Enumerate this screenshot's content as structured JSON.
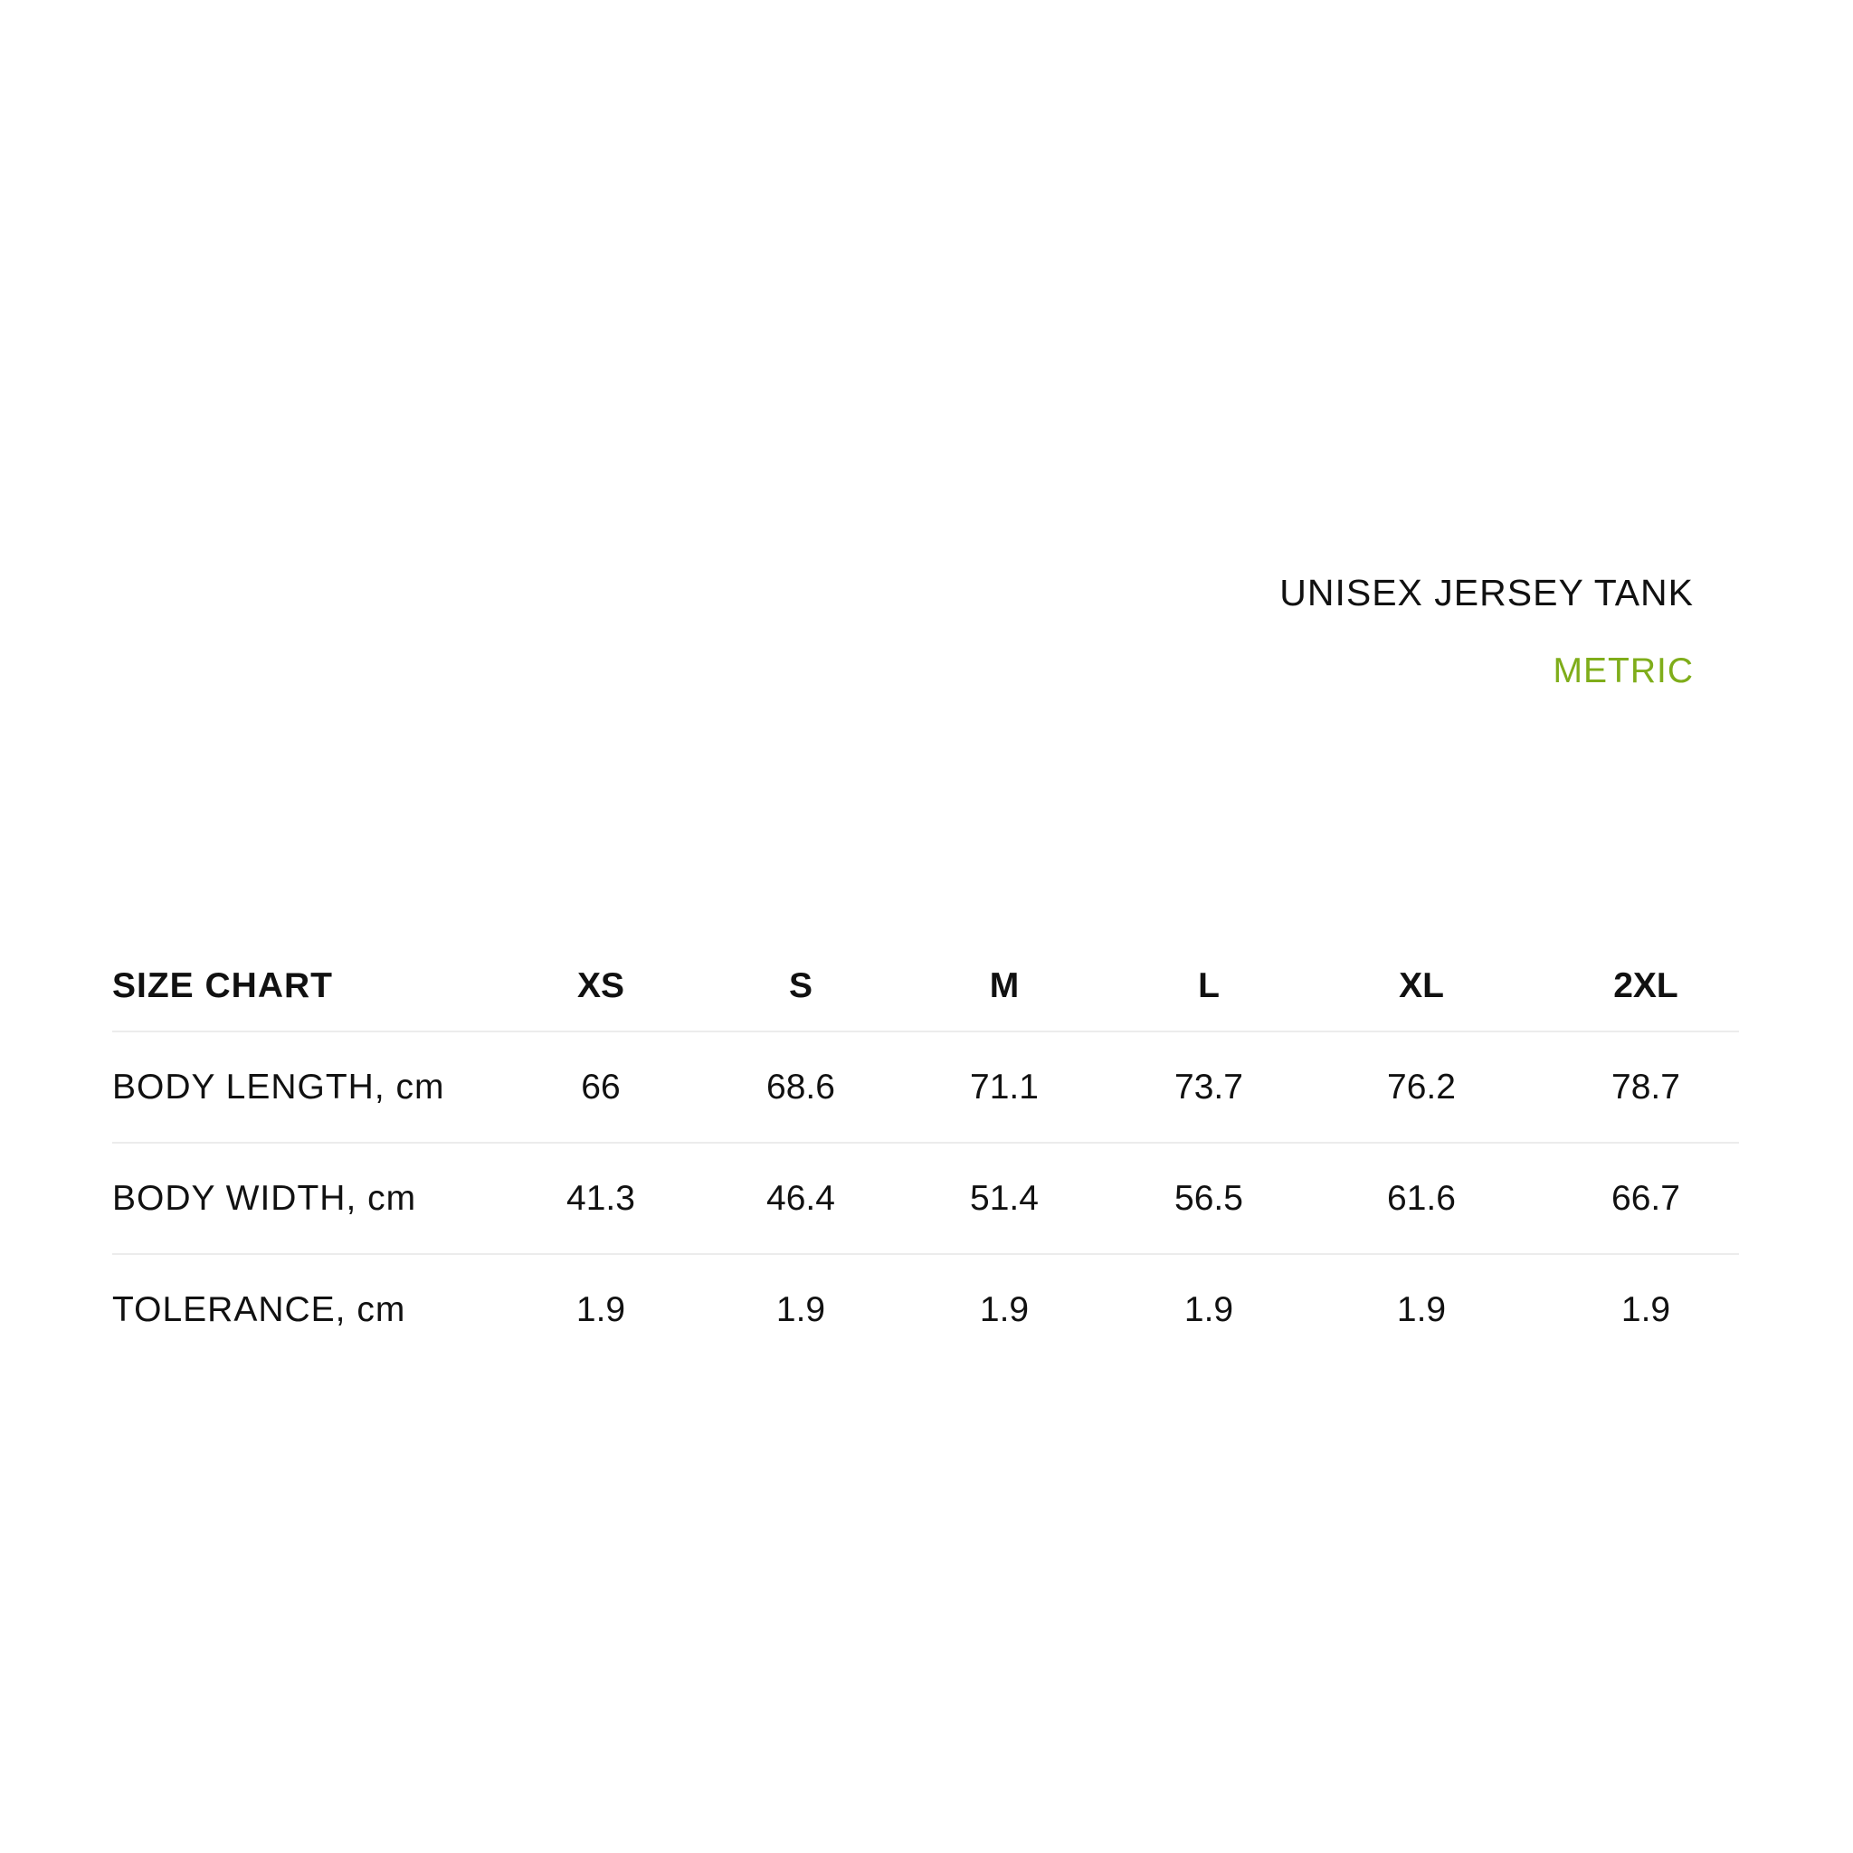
{
  "title": "UNISEX JERSEY TANK",
  "unit_system": "METRIC",
  "accent_color": "#7fad1a",
  "table": {
    "header": "SIZE CHART",
    "sizes": [
      "XS",
      "S",
      "M",
      "L",
      "XL",
      "2XL"
    ],
    "rows": [
      {
        "label": "BODY LENGTH, cm",
        "values": [
          "66",
          "68.6",
          "71.1",
          "73.7",
          "76.2",
          "78.7"
        ]
      },
      {
        "label": "BODY WIDTH, cm",
        "values": [
          "41.3",
          "46.4",
          "51.4",
          "56.5",
          "61.6",
          "66.7"
        ]
      },
      {
        "label": "TOLERANCE, cm",
        "values": [
          "1.9",
          "1.9",
          "1.9",
          "1.9",
          "1.9",
          "1.9"
        ]
      }
    ]
  }
}
